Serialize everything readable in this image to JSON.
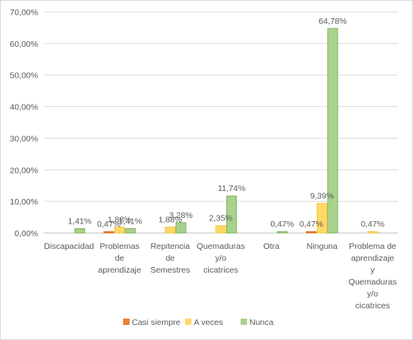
{
  "chart_data": {
    "type": "bar",
    "categories": [
      [
        "Discapacidad"
      ],
      [
        "Problemas",
        "de",
        "aprendizaje"
      ],
      [
        "Repitencia",
        "de",
        "Semestres"
      ],
      [
        "Quemaduras",
        "y/o",
        "cicatrices"
      ],
      [
        "Otra"
      ],
      [
        "Ninguna"
      ],
      [
        "Problema de",
        "aprendizaje",
        "y",
        "Quemaduras",
        "y/o",
        "cicatrices"
      ]
    ],
    "series": [
      {
        "name": "Casi siempre",
        "color": "#ED7D31",
        "values": [
          0,
          0.47,
          0,
          0,
          0,
          0.47,
          0
        ],
        "labels": [
          "",
          "0,47%",
          "",
          "",
          "",
          "0,47%",
          ""
        ]
      },
      {
        "name": "A veces",
        "color": "#FFD966",
        "values": [
          0,
          1.88,
          1.88,
          2.35,
          0,
          9.39,
          0.47
        ],
        "labels": [
          "",
          "1,88%",
          "1,88%",
          "2,35%",
          "",
          "9,39%",
          "0,47%"
        ]
      },
      {
        "name": "Nunca",
        "color": "#A9D18E",
        "values": [
          1.41,
          1.41,
          3.28,
          11.74,
          0.47,
          64.78,
          0
        ],
        "labels": [
          "1,41%",
          "1,41%",
          "3,28%",
          "11,74%",
          "0,47%",
          "64,78%",
          ""
        ]
      }
    ],
    "ylim": [
      0,
      70
    ],
    "yticks": [
      "0,00%",
      "10,00%",
      "20,00%",
      "30,00%",
      "40,00%",
      "50,00%",
      "60,00%",
      "70,00%"
    ],
    "grid": true,
    "legend_position": "bottom"
  }
}
